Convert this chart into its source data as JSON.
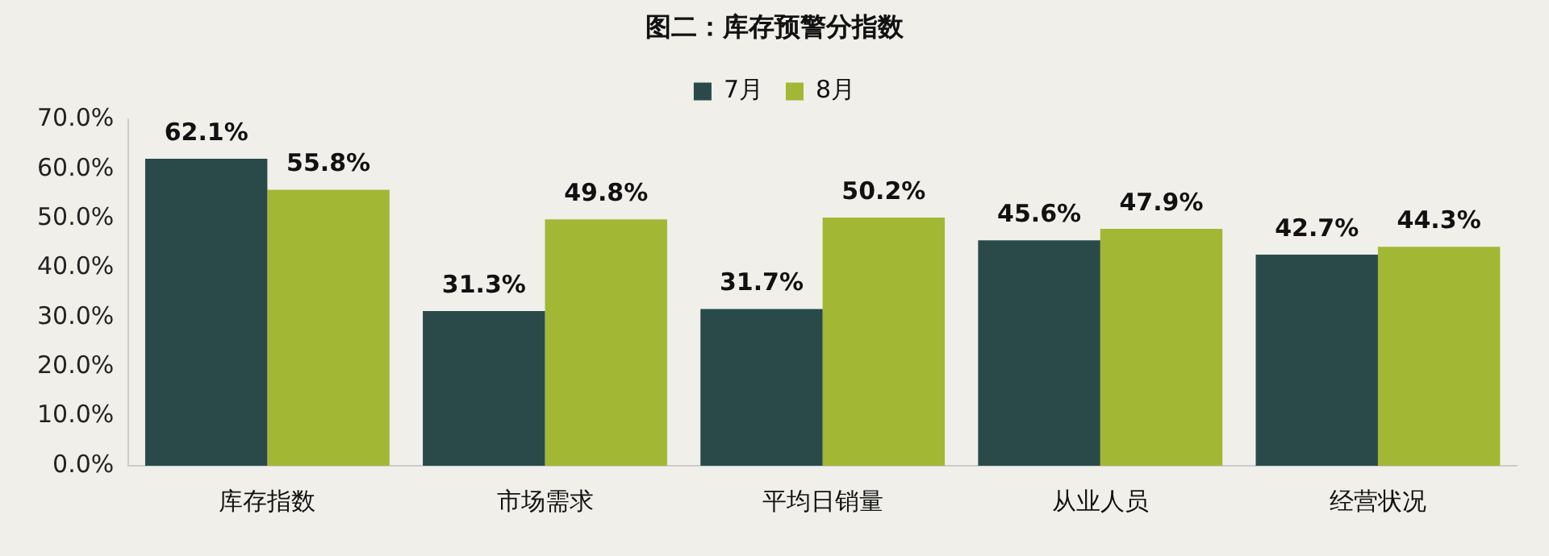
{
  "chart_data": {
    "type": "bar",
    "title": "图二：库存预警分指数",
    "categories": [
      "库存指数",
      "市场需求",
      "平均日销量",
      "从业人员",
      "经营状况"
    ],
    "series": [
      {
        "name": "7月",
        "color": "#2a4a4a",
        "values": [
          62.1,
          31.3,
          31.7,
          45.6,
          42.7
        ],
        "value_labels": [
          "62.1%",
          "31.3%",
          "31.7%",
          "45.6%",
          "42.7%"
        ]
      },
      {
        "name": "8月",
        "color": "#a2b835",
        "values": [
          55.8,
          49.8,
          50.2,
          47.9,
          44.3
        ],
        "value_labels": [
          "55.8%",
          "49.8%",
          "50.2%",
          "47.9%",
          "44.3%"
        ]
      }
    ],
    "ylim": [
      0,
      70
    ],
    "yticks": [
      {
        "value": 0,
        "label": "0.0%"
      },
      {
        "value": 10,
        "label": "10.0%"
      },
      {
        "value": 20,
        "label": "20.0%"
      },
      {
        "value": 30,
        "label": "30.0%"
      },
      {
        "value": 40,
        "label": "40.0%"
      },
      {
        "value": 50,
        "label": "50.0%"
      },
      {
        "value": 60,
        "label": "60.0%"
      },
      {
        "value": 70,
        "label": "70.0%"
      }
    ],
    "grid": false,
    "legend": "top"
  }
}
